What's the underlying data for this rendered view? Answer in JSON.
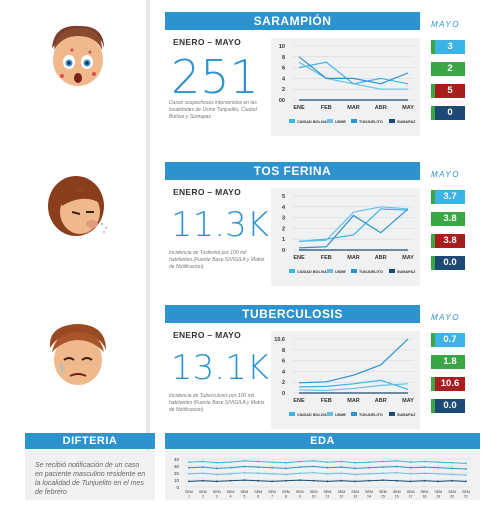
{
  "colors": {
    "accent": "#2c93cf",
    "light_blue": "#3cb3e6",
    "green": "#3aa645",
    "red": "#a81d1d",
    "navy": "#1d4a74",
    "panel_bg": "#f0f1f2"
  },
  "legend": [
    "CIUDAD BOLIVAR",
    "USME",
    "TUNJUELITO",
    "SUMAPAZ"
  ],
  "months": [
    "ENE",
    "FEB",
    "MAR",
    "ABR",
    "MAY"
  ],
  "sections": [
    {
      "title": "SARAMPIÓN",
      "period": "ENERO – MAYO",
      "big_value": "251",
      "note": "Casos sospechosos intervenidos en las localidades de Usme Tunjuelito, Ciudad Bolívar y Sumapaz",
      "mayo_label": "MAYO",
      "badges": [
        "3",
        "2",
        "5",
        "0"
      ],
      "chart_data": {
        "type": "line",
        "categories": [
          "ENE",
          "FEB",
          "MAR",
          "ABR",
          "MAY"
        ],
        "yticks": [
          "10",
          "8",
          "6",
          "4",
          "2",
          "00"
        ],
        "ylim": [
          0,
          10
        ],
        "series": [
          {
            "name": "CIUDAD BOLIVAR",
            "values": [
              6,
              7,
              3,
              4,
              3
            ]
          },
          {
            "name": "USME",
            "values": [
              7,
              4,
              3,
              2,
              2
            ]
          },
          {
            "name": "TUNJUELITO",
            "values": [
              8,
              4,
              4,
              3,
              5
            ]
          },
          {
            "name": "SUMAPAZ",
            "values": [
              0,
              0,
              0,
              0,
              0
            ]
          }
        ]
      }
    },
    {
      "title": "TOS FERINA",
      "period": "ENERO – MAYO",
      "big_value": "11.3K",
      "note": "Incidencia de Tosferina por 100 mil habitantes (Fuente Base SIVIGILA y Matriz de Notificacion)",
      "mayo_label": "MAYO",
      "badges": [
        "3.7",
        "3.8",
        "3.8",
        "0.0"
      ],
      "chart_data": {
        "type": "line",
        "categories": [
          "ENE",
          "FEB",
          "MAR",
          "ABR",
          "MAY"
        ],
        "yticks": [
          "5",
          "4",
          "3",
          "2",
          "1",
          "0"
        ],
        "ylim": [
          0,
          5
        ],
        "series": [
          {
            "name": "CIUDAD BOLIVAR",
            "values": [
              0.8,
              1,
              1.4,
              3.8,
              3.7
            ]
          },
          {
            "name": "USME",
            "values": [
              0.8,
              0.9,
              3.5,
              4,
              3.8
            ]
          },
          {
            "name": "TUNJUELITO",
            "values": [
              0.2,
              0.3,
              3.2,
              1.6,
              3.8
            ]
          },
          {
            "name": "SUMAPAZ",
            "values": [
              0,
              0,
              0,
              0,
              0
            ]
          }
        ]
      }
    },
    {
      "title": "TUBERCULOSIS",
      "period": "ENERO – MAYO",
      "big_value": "13.1K",
      "note": "Incidencia de Tuberculosis por 100 mil habitantes (Fuente Base SIVIGILA y Matriz de Notificacion)",
      "mayo_label": "MAYO",
      "badges": [
        "0.7",
        "1.8",
        "10.6",
        "0.0"
      ],
      "chart_data": {
        "type": "line",
        "categories": [
          "ENE",
          "FEB",
          "MAR",
          "ABR",
          "MAY"
        ],
        "yticks": [
          "10.6",
          "8",
          "6",
          "4",
          "2",
          "0"
        ],
        "ylim": [
          0,
          10.6
        ],
        "series": [
          {
            "name": "CIUDAD BOLIVAR",
            "values": [
              1.2,
              1.3,
              1.8,
              2.5,
              0.7
            ]
          },
          {
            "name": "USME",
            "values": [
              0.6,
              0.5,
              0.9,
              1.5,
              1.8
            ]
          },
          {
            "name": "TUNJUELITO",
            "values": [
              2,
              2.2,
              3.5,
              5.5,
              10.6
            ]
          },
          {
            "name": "SUMAPAZ",
            "values": [
              0,
              0,
              0,
              0,
              0
            ]
          }
        ]
      }
    }
  ],
  "difteria": {
    "title": "DIFTERIA",
    "text": "Se recibió notificación de un caso en paciente masculino residente en la localidad de Tunjuelito en el mes de febrero"
  },
  "eda": {
    "title": "EDA",
    "chart_data": {
      "type": "line",
      "yticks": [
        "40",
        "30",
        "20",
        "10",
        "0"
      ],
      "ylim": [
        0,
        45
      ],
      "x": [
        "SEM 1",
        "SEM 2",
        "SEM 3",
        "SEM 4",
        "SEM 5",
        "SEM 6",
        "SEM 7",
        "SEM 8",
        "SEM 9",
        "SEM 10",
        "SEM 11",
        "SEM 12",
        "SEM 13",
        "SEM 14",
        "SEM 15",
        "SEM 16",
        "SEM 17",
        "SEM 18",
        "SEM 19",
        "SEM 20",
        "SEM 21"
      ],
      "series": [
        {
          "values": [
            40,
            41,
            39,
            40,
            42,
            41,
            40,
            39,
            41,
            42,
            40,
            41,
            39,
            40,
            41,
            42,
            40,
            41,
            40,
            39,
            38
          ]
        },
        {
          "values": [
            31,
            32,
            30,
            31,
            33,
            32,
            31,
            30,
            32,
            33,
            31,
            32,
            30,
            31,
            32,
            33,
            31,
            32,
            31,
            30,
            29
          ]
        },
        {
          "values": [
            21,
            22,
            20,
            21,
            23,
            22,
            21,
            20,
            22,
            23,
            21,
            22,
            20,
            21,
            22,
            23,
            21,
            22,
            21,
            20,
            19
          ]
        },
        {
          "values": [
            9,
            10,
            9,
            10,
            11,
            10,
            9,
            10,
            11,
            10,
            9,
            10,
            9,
            10,
            11,
            10,
            9,
            10,
            9,
            10,
            9
          ]
        }
      ]
    }
  }
}
